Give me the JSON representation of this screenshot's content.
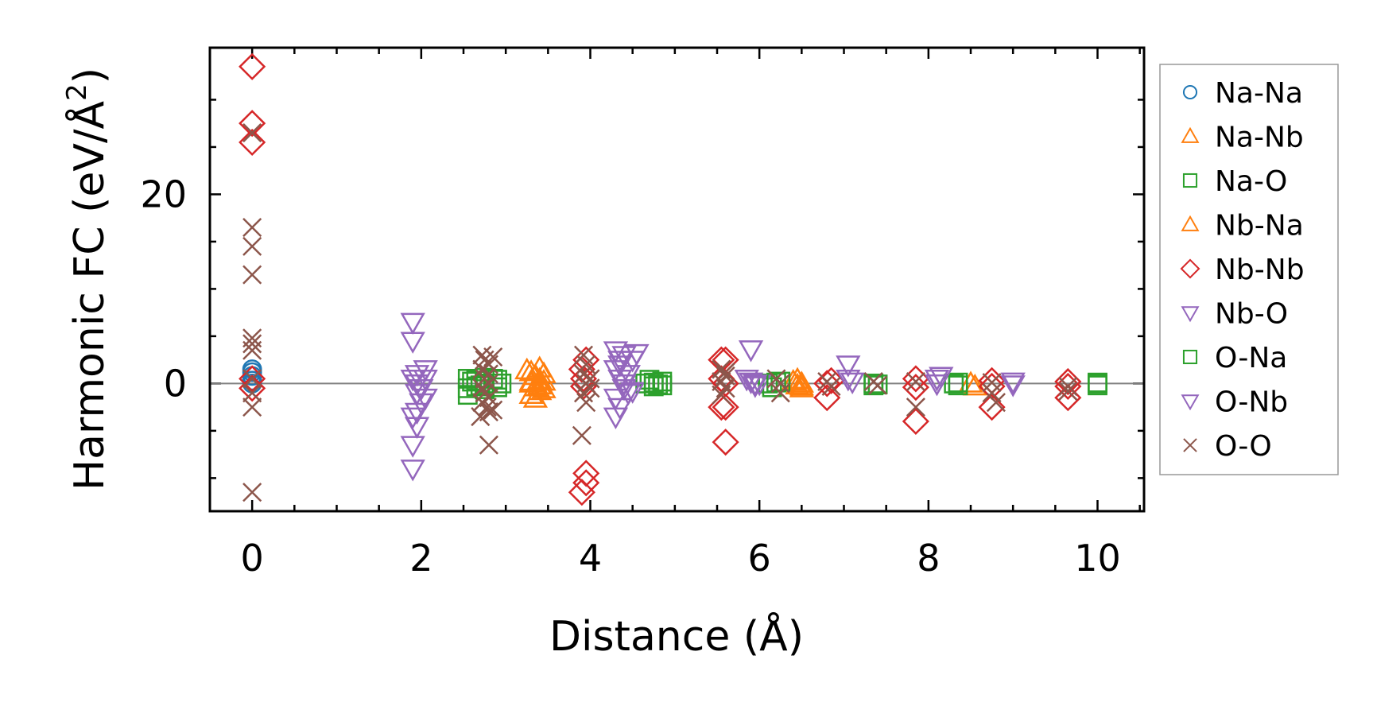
{
  "chart_data": {
    "type": "scatter",
    "xlabel": "Distance (Å)",
    "ylabel_main": "Harmonic FC (eV/Å",
    "ylabel_sup": "2",
    "ylabel_close": ")",
    "xlim": [
      -0.5,
      10.55
    ],
    "ylim": [
      -13.5,
      35.5
    ],
    "xticks": [
      0,
      2,
      4,
      6,
      8,
      10
    ],
    "xtick_labels": [
      "0",
      "2",
      "4",
      "6",
      "8",
      "10"
    ],
    "yticks": [
      0,
      20
    ],
    "ytick_labels": [
      "0",
      "20"
    ],
    "reference_line_y": 0,
    "legend_position": "right",
    "series": [
      {
        "name": "Na-Na",
        "marker": "circle",
        "color": "#1f77b4",
        "points": [
          [
            0,
            1.5
          ],
          [
            0,
            1.2
          ],
          [
            0,
            0.8
          ],
          [
            0,
            0.3
          ],
          [
            0,
            0.0
          ]
        ]
      },
      {
        "name": "Na-Nb",
        "marker": "triangle-up",
        "color": "#ff7f0e",
        "points": [
          [
            3.3,
            1.2
          ],
          [
            3.35,
            0.8
          ],
          [
            3.4,
            0.4
          ],
          [
            3.3,
            0.0
          ],
          [
            3.35,
            -0.4
          ],
          [
            3.4,
            -0.8
          ],
          [
            3.3,
            -1.2
          ],
          [
            3.35,
            -1.6
          ],
          [
            3.4,
            1.6
          ],
          [
            3.45,
            0.2
          ],
          [
            3.45,
            -0.6
          ],
          [
            6.4,
            0.2
          ],
          [
            6.45,
            -0.2
          ],
          [
            6.5,
            -0.5
          ],
          [
            6.45,
            0.4
          ],
          [
            8.5,
            0.0
          ],
          [
            8.55,
            -0.3
          ]
        ]
      },
      {
        "name": "Na-O",
        "marker": "square",
        "color": "#2ca02c",
        "points": [
          [
            2.55,
            0.5
          ],
          [
            2.55,
            -0.5
          ],
          [
            2.55,
            -1.2
          ],
          [
            2.65,
            0.3
          ],
          [
            2.65,
            -0.3
          ],
          [
            2.75,
            0.0
          ],
          [
            2.75,
            0.6
          ],
          [
            2.75,
            -0.6
          ],
          [
            2.9,
            0.4
          ],
          [
            2.9,
            -0.4
          ],
          [
            2.95,
            0.0
          ],
          [
            4.65,
            0.0
          ],
          [
            4.7,
            0.4
          ],
          [
            4.75,
            -0.3
          ],
          [
            4.85,
            0.2
          ],
          [
            4.85,
            -0.2
          ],
          [
            6.1,
            0.0
          ],
          [
            6.15,
            -0.4
          ],
          [
            6.25,
            0.2
          ],
          [
            7.35,
            0.0
          ],
          [
            7.35,
            -0.2
          ],
          [
            8.3,
            0.0
          ],
          [
            8.35,
            -0.2
          ],
          [
            10.0,
            0.0
          ],
          [
            10.0,
            -0.2
          ]
        ]
      },
      {
        "name": "Nb-Na",
        "marker": "triangle-up",
        "color": "#ff7f0e",
        "points": [
          [
            3.25,
            1.4
          ],
          [
            3.3,
            0.2
          ],
          [
            3.4,
            -0.2
          ],
          [
            3.45,
            1.0
          ],
          [
            6.5,
            0.0
          ],
          [
            6.5,
            -0.3
          ]
        ]
      },
      {
        "name": "Nb-Nb",
        "marker": "diamond",
        "color": "#d62728",
        "points": [
          [
            0,
            33.5
          ],
          [
            0,
            27.5
          ],
          [
            0,
            25.5
          ],
          [
            0,
            0.5
          ],
          [
            0,
            -0.5
          ],
          [
            3.9,
            1.5
          ],
          [
            3.92,
            0.5
          ],
          [
            3.92,
            -0.3
          ],
          [
            3.95,
            2.5
          ],
          [
            3.95,
            -9.5
          ],
          [
            3.95,
            -10.5
          ],
          [
            3.9,
            -11.5
          ],
          [
            5.55,
            2.5
          ],
          [
            5.6,
            2.5
          ],
          [
            5.55,
            -2.5
          ],
          [
            5.6,
            -2.5
          ],
          [
            5.55,
            0.5
          ],
          [
            5.6,
            0.0
          ],
          [
            5.6,
            -6.2
          ],
          [
            6.8,
            0.0
          ],
          [
            6.8,
            -1.5
          ],
          [
            6.85,
            0.3
          ],
          [
            7.85,
            0.5
          ],
          [
            7.85,
            -0.4
          ],
          [
            7.85,
            -4.0
          ],
          [
            8.75,
            0.3
          ],
          [
            8.75,
            -2.5
          ],
          [
            8.75,
            -0.3
          ],
          [
            9.65,
            0.2
          ],
          [
            9.65,
            -1.5
          ],
          [
            9.65,
            -0.3
          ]
        ]
      },
      {
        "name": "Nb-O",
        "marker": "triangle-down",
        "color": "#9467bd",
        "points": [
          [
            1.9,
            6.5
          ],
          [
            1.9,
            4.5
          ],
          [
            1.9,
            0.5
          ],
          [
            1.95,
            0.0
          ],
          [
            1.95,
            -1.0
          ],
          [
            2.0,
            -2.0
          ],
          [
            1.9,
            -3.5
          ],
          [
            1.95,
            -4.5
          ],
          [
            1.9,
            -6.5
          ],
          [
            1.9,
            -9.0
          ],
          [
            2.05,
            1.5
          ],
          [
            2.05,
            0.5
          ],
          [
            4.3,
            3.5
          ],
          [
            4.35,
            2.5
          ],
          [
            4.3,
            1.5
          ],
          [
            4.35,
            0.5
          ],
          [
            4.4,
            -0.5
          ],
          [
            4.3,
            -1.5
          ],
          [
            4.35,
            -2.5
          ],
          [
            4.3,
            -3.5
          ],
          [
            4.4,
            3.0
          ],
          [
            4.45,
            1.0
          ],
          [
            4.5,
            -0.8
          ],
          [
            4.55,
            3.2
          ],
          [
            5.85,
            0.5
          ],
          [
            5.9,
            0.2
          ],
          [
            5.95,
            -0.2
          ],
          [
            5.9,
            3.6
          ],
          [
            6.0,
            0.0
          ],
          [
            7.05,
            2.0
          ],
          [
            7.05,
            0.5
          ],
          [
            8.1,
            0.5
          ],
          [
            9.0,
            0.2
          ]
        ]
      },
      {
        "name": "O-Na",
        "marker": "square",
        "color": "#2ca02c",
        "points": [
          [
            2.6,
            0.2
          ],
          [
            2.7,
            -0.2
          ],
          [
            2.85,
            0.5
          ],
          [
            4.75,
            0.1
          ],
          [
            4.8,
            -0.1
          ],
          [
            6.2,
            0.1
          ],
          [
            7.4,
            -0.1
          ],
          [
            8.35,
            0.1
          ],
          [
            10.0,
            0.1
          ]
        ]
      },
      {
        "name": "O-Nb",
        "marker": "triangle-down",
        "color": "#9467bd",
        "points": [
          [
            1.95,
            1.0
          ],
          [
            2.0,
            -0.5
          ],
          [
            2.05,
            -1.5
          ],
          [
            1.95,
            -3.0
          ],
          [
            4.35,
            2.0
          ],
          [
            4.4,
            0.0
          ],
          [
            4.45,
            -1.0
          ],
          [
            4.5,
            2.5
          ],
          [
            5.95,
            0.0
          ],
          [
            7.1,
            0.2
          ],
          [
            8.1,
            0.0
          ],
          [
            8.15,
            0.8
          ],
          [
            9.0,
            -0.1
          ]
        ]
      },
      {
        "name": "O-O",
        "marker": "x",
        "color": "#8c564b",
        "points": [
          [
            0,
            26.5
          ],
          [
            0,
            16.5
          ],
          [
            0,
            14.5
          ],
          [
            0,
            11.5
          ],
          [
            0,
            4.8
          ],
          [
            0,
            4.2
          ],
          [
            0,
            3.5
          ],
          [
            0,
            0.5
          ],
          [
            0,
            -1.0
          ],
          [
            0,
            -2.5
          ],
          [
            0,
            -11.5
          ],
          [
            2.72,
            3.0
          ],
          [
            2.75,
            2.5
          ],
          [
            2.8,
            2.0
          ],
          [
            2.72,
            1.5
          ],
          [
            2.8,
            1.0
          ],
          [
            2.75,
            0.5
          ],
          [
            2.8,
            0.0
          ],
          [
            2.72,
            -0.5
          ],
          [
            2.75,
            -1.0
          ],
          [
            2.8,
            -1.5
          ],
          [
            2.72,
            -2.0
          ],
          [
            2.78,
            -2.5
          ],
          [
            2.8,
            -3.0
          ],
          [
            2.7,
            -3.5
          ],
          [
            2.8,
            -6.5
          ],
          [
            2.85,
            2.8
          ],
          [
            2.85,
            -2.8
          ],
          [
            3.92,
            3.0
          ],
          [
            3.95,
            2.0
          ],
          [
            3.92,
            1.0
          ],
          [
            3.95,
            0.0
          ],
          [
            3.92,
            -1.0
          ],
          [
            3.95,
            -2.0
          ],
          [
            3.9,
            -5.5
          ],
          [
            4.0,
            -0.5
          ],
          [
            4.0,
            0.5
          ],
          [
            5.55,
            1.5
          ],
          [
            5.6,
            0.8
          ],
          [
            5.55,
            0.2
          ],
          [
            5.6,
            -0.5
          ],
          [
            5.55,
            -1.2
          ],
          [
            5.6,
            1.2
          ],
          [
            6.2,
            0.5
          ],
          [
            6.25,
            -1.0
          ],
          [
            6.25,
            0.0
          ],
          [
            6.8,
            0.2
          ],
          [
            6.85,
            -0.3
          ],
          [
            7.35,
            0.2
          ],
          [
            7.4,
            -0.2
          ],
          [
            7.85,
            0.2
          ],
          [
            7.85,
            -2.5
          ],
          [
            8.75,
            -1.0
          ],
          [
            8.8,
            -2.0
          ],
          [
            8.75,
            0.1
          ],
          [
            9.65,
            -0.3
          ],
          [
            9.65,
            -0.8
          ]
        ]
      }
    ]
  }
}
